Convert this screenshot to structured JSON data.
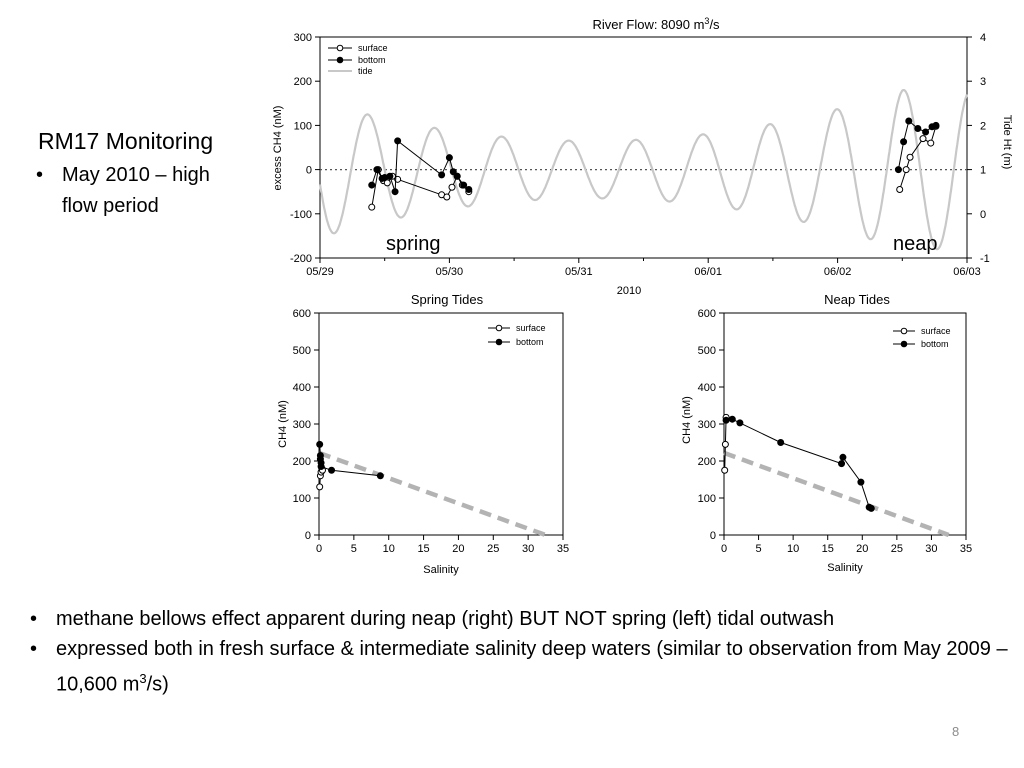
{
  "slide": {
    "title": "RM17 Monitoring",
    "title_bullets": [
      "May 2010 – high flow period"
    ],
    "bottom_bullets": [
      {
        "text": "methane bellows effect apparent during neap (right) BUT NOT spring (left) tidal outwash"
      },
      {
        "text_before": "expressed both in fresh surface & intermediate salinity deep waters (similar to observation from May 2009 – 10,600 m",
        "superscript": "3",
        "text_after": "/s)"
      }
    ],
    "slide_number": "8"
  },
  "chart_data": [
    {
      "type": "line",
      "title_prefix": "River Flow: 8090 m",
      "title_superscript": "3",
      "title_suffix": "/s",
      "xlabel": "2010",
      "ylabel": "excess CH4 (nM)",
      "y2label": "Tide Ht (m)",
      "xlim": [
        0,
        5
      ],
      "ylim": [
        -200,
        300
      ],
      "y2lim": [
        -1,
        4
      ],
      "xtick_values": [
        0,
        1,
        2,
        3,
        4,
        5
      ],
      "xtick_labels": [
        "05/29",
        "05/30",
        "05/31",
        "06/01",
        "06/02",
        "06/03"
      ],
      "ytick_values": [
        -200,
        -100,
        0,
        100,
        200,
        300
      ],
      "y2tick_values": [
        -1,
        0,
        1,
        2,
        3,
        4
      ],
      "reference_line_y": 0,
      "annotations": [
        "spring",
        "neap"
      ],
      "legend_position": "top-left",
      "series": [
        {
          "name": "surface",
          "marker": "open-circle",
          "x": [
            0.4,
            0.45,
            0.49,
            0.52,
            0.56,
            0.6,
            0.94,
            0.98,
            1.02,
            1.06,
            1.1,
            1.15,
            4.48,
            4.53,
            4.56,
            4.66,
            4.72,
            4.76
          ],
          "y": [
            -85,
            0,
            -25,
            -30,
            -15,
            -22,
            -57,
            -62,
            -40,
            -15,
            -35,
            -50,
            -45,
            0,
            28,
            70,
            60,
            98
          ]
        },
        {
          "name": "bottom",
          "marker": "filled-circle",
          "x": [
            0.4,
            0.44,
            0.48,
            0.5,
            0.54,
            0.58,
            0.6,
            0.94,
            1.0,
            1.03,
            1.06,
            1.11,
            1.15,
            4.47,
            4.51,
            4.55,
            4.62,
            4.68,
            4.73,
            4.76
          ],
          "y": [
            -35,
            0,
            -20,
            -18,
            -15,
            -50,
            65,
            -12,
            27,
            -5,
            -15,
            -35,
            -45,
            0,
            63,
            110,
            93,
            85,
            97,
            100
          ]
        },
        {
          "name": "tide",
          "axis": "right",
          "function": "semidiurnal",
          "mean_m": 1.0,
          "period_days": 0.5175,
          "amplitude_peak_m": 1.8,
          "amplitude_min_m": 0.65,
          "first_high_day": 0.37,
          "neap_center_day": 2.1,
          "modulation_halfwidth_day": 2.4
        }
      ]
    },
    {
      "type": "scatter",
      "title": "Spring Tides",
      "xlabel": "Salinity",
      "ylabel": "CH4 (nM)",
      "xlim": [
        0,
        35
      ],
      "ylim": [
        0,
        600
      ],
      "xtick_values": [
        0,
        5,
        10,
        15,
        20,
        25,
        30,
        35
      ],
      "ytick_values": [
        0,
        100,
        200,
        300,
        400,
        500,
        600
      ],
      "legend_position": "top-right",
      "series": [
        {
          "name": "surface",
          "marker": "open-circle",
          "x": [
            0.1,
            0.2,
            0.3,
            0.4,
            0.5
          ],
          "y": [
            130,
            160,
            170,
            180,
            175
          ]
        },
        {
          "name": "bottom",
          "marker": "filled-circle",
          "x": [
            0.1,
            0.2,
            0.2,
            0.3,
            0.3,
            1.8,
            8.8
          ],
          "y": [
            245,
            215,
            205,
            195,
            185,
            175,
            160
          ]
        },
        {
          "name": "mixing line",
          "style": "dashed-gray",
          "x": [
            0,
            32.5
          ],
          "y": [
            222,
            0
          ]
        }
      ]
    },
    {
      "type": "scatter",
      "title": "Neap Tides",
      "xlabel": "Salinity",
      "ylabel": "CH4 (nM)",
      "xlim": [
        0,
        35
      ],
      "ylim": [
        0,
        600
      ],
      "xtick_values": [
        0,
        5,
        10,
        15,
        20,
        25,
        30,
        35
      ],
      "ytick_values": [
        0,
        100,
        200,
        300,
        400,
        500,
        600
      ],
      "legend_position": "top-right",
      "series": [
        {
          "name": "surface",
          "marker": "open-circle",
          "x": [
            0.1,
            0.2,
            0.3
          ],
          "y": [
            175,
            245,
            318
          ]
        },
        {
          "name": "bottom",
          "marker": "filled-circle",
          "x": [
            0.3,
            1.2,
            2.3,
            8.2,
            17.0,
            17.2,
            19.8,
            21.0,
            21.3
          ],
          "y": [
            310,
            313,
            303,
            250,
            193,
            210,
            143,
            75,
            72
          ]
        },
        {
          "name": "mixing line",
          "style": "dashed-gray",
          "x": [
            0,
            32.5
          ],
          "y": [
            222,
            0
          ]
        }
      ]
    }
  ]
}
